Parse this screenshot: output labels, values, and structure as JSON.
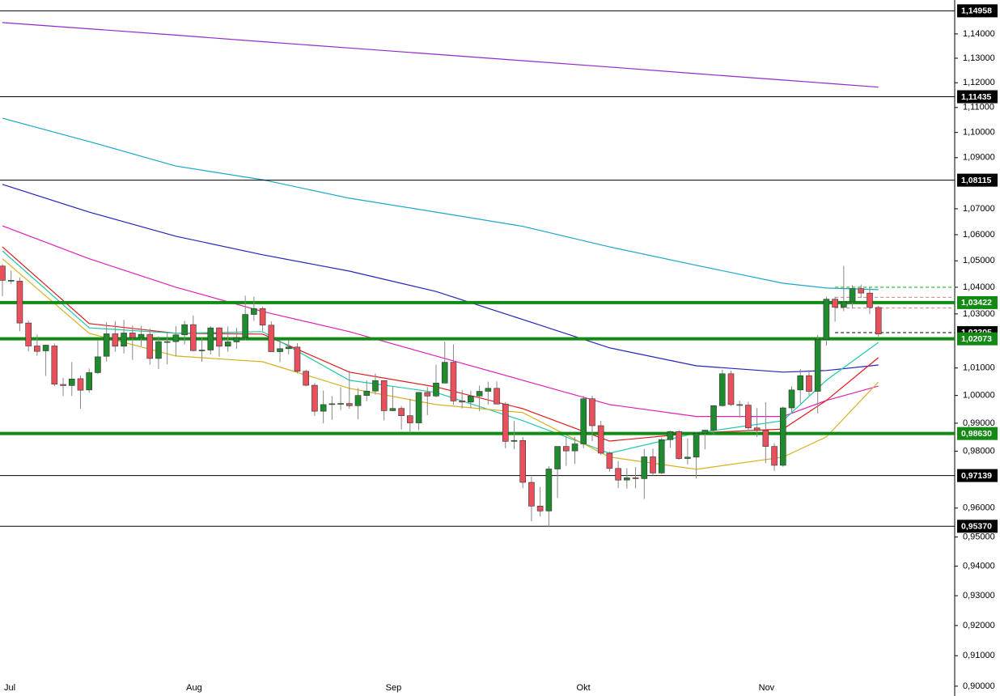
{
  "chart_data": {
    "type": "candlestick",
    "categories": [
      "Jul",
      null,
      null,
      null,
      null,
      null,
      null,
      null,
      null,
      null,
      null,
      null,
      null,
      null,
      null,
      null,
      null,
      null,
      null,
      null,
      null,
      "Aug",
      null,
      null,
      null,
      null,
      null,
      null,
      null,
      null,
      null,
      null,
      null,
      null,
      null,
      null,
      null,
      null,
      null,
      null,
      null,
      null,
      null,
      null,
      "Sep",
      null,
      null,
      null,
      null,
      null,
      null,
      null,
      null,
      null,
      null,
      null,
      null,
      null,
      null,
      null,
      null,
      null,
      null,
      null,
      null,
      null,
      "Okt",
      null,
      null,
      null,
      null,
      null,
      null,
      null,
      null,
      null,
      null,
      null,
      null,
      null,
      null,
      null,
      null,
      null,
      null,
      null,
      null,
      "Nov",
      null,
      null,
      null,
      null,
      null,
      null,
      null,
      null,
      null,
      null,
      null,
      null,
      null,
      null
    ],
    "open": [
      1.048,
      1.0424,
      1.0423,
      1.0266,
      1.0181,
      1.0163,
      1.0181,
      1.004,
      1.0036,
      1.0061,
      1.002,
      1.0083,
      1.0143,
      1.0226,
      1.018,
      1.0229,
      1.0212,
      1.0224,
      1.0135,
      1.0197,
      1.0197,
      1.0222,
      1.026,
      1.0164,
      1.0166,
      1.0248,
      1.018,
      1.0196,
      1.0212,
      1.0298,
      1.032,
      1.0258,
      1.016,
      1.0171,
      1.0177,
      1.0088,
      1.0037,
      0.9943,
      0.9967,
      0.997,
      0.9971,
      0.9963,
      1.0,
      1.0016,
      1.0054,
      0.9945,
      0.9953,
      0.9927,
      0.9901,
      1.0011,
      0.9998,
      1.0045,
      1.0121,
      0.998,
      0.9976,
      0.9998,
      1.0015,
      1.0026,
      0.9969,
      0.9835,
      0.9838,
      0.969,
      0.9607,
      0.959,
      0.9737,
      0.9817,
      0.9801,
      0.9826,
      0.9988,
      0.9891,
      0.9793,
      0.9739,
      0.9698,
      0.9706,
      0.9703,
      0.978,
      0.9723,
      0.9841,
      0.987,
      0.9774,
      0.9779,
      0.9864,
      0.9875,
      0.9963,
      1.0079,
      0.9967,
      0.9965,
      0.9883,
      0.9874,
      0.9817,
      0.975,
      0.9955,
      1.002,
      1.0072,
      1.0015,
      1.0205,
      1.0355,
      1.0325,
      1.0345,
      1.0395,
      1.0378,
      1.0324
    ],
    "high": [
      1.0487,
      1.0463,
      1.0437,
      1.0275,
      1.0223,
      1.0185,
      1.019,
      1.0064,
      1.0122,
      1.0073,
      1.0098,
      1.02,
      1.0269,
      1.0273,
      1.0278,
      1.0257,
      1.0255,
      1.0245,
      1.0217,
      1.0234,
      1.0254,
      1.0274,
      1.0294,
      1.0212,
      1.0254,
      1.025,
      1.0253,
      1.0248,
      1.0368,
      1.0364,
      1.0327,
      1.0272,
      1.0202,
      1.0202,
      1.0191,
      1.0094,
      1.0045,
      1.0018,
      0.9998,
      1.003,
      1.009,
      1.0027,
      1.0054,
      1.008,
      1.0056,
      1.0033,
      0.9962,
      0.9988,
      1.0012,
      1.003,
      1.0112,
      1.0197,
      1.0187,
      1.0019,
      1.0018,
      1.0036,
      1.005,
      1.0051,
      0.9976,
      0.9908,
      0.9851,
      0.971,
      0.9674,
      0.9747,
      0.9817,
      0.9853,
      0.985,
      0.9999,
      0.9999,
      0.9908,
      0.9799,
      0.9765,
      0.974,
      0.9744,
      0.9808,
      0.9809,
      0.9848,
      0.9873,
      0.9875,
      0.9846,
      0.9869,
      0.9876,
      0.9965,
      1.0094,
      1.009,
      0.9981,
      0.9977,
      0.9954,
      0.9976,
      0.9829,
      0.996,
      1.0033,
      1.0096,
      1.0093,
      1.0222,
      1.0364,
      1.0364,
      1.0481,
      1.0408,
      1.041,
      1.04,
      1.033
    ],
    "low": [
      1.0366,
      1.0413,
      1.0236,
      1.0161,
      1.0145,
      1.0071,
      1.0034,
      0.9998,
      0.9998,
      0.9952,
      1.001,
      1.0078,
      1.0124,
      1.016,
      1.0153,
      1.013,
      1.018,
      1.0112,
      1.0096,
      1.0113,
      1.0144,
      1.0186,
      1.0161,
      1.0123,
      1.015,
      1.0141,
      1.016,
      1.017,
      1.0202,
      1.0274,
      1.0237,
      1.016,
      1.0122,
      1.015,
      1.008,
      1.0033,
      0.9926,
      0.99,
      0.9912,
      0.9947,
      0.9952,
      0.9914,
      0.9979,
      1.0003,
      0.991,
      0.9943,
      0.9877,
      0.9864,
      0.9875,
      0.9929,
      0.9993,
      1.0045,
      0.9966,
      0.9953,
      0.9955,
      0.9943,
      0.9967,
      0.9968,
      0.981,
      0.9807,
      0.9669,
      0.9554,
      0.9571,
      0.9535,
      0.9635,
      0.9748,
      0.9754,
      0.9811,
      0.9836,
      0.9786,
      0.9728,
      0.967,
      0.9668,
      0.9669,
      0.9632,
      0.9714,
      0.9719,
      0.9812,
      0.977,
      0.9753,
      0.9704,
      0.9807,
      0.986,
      0.996,
      0.9962,
      0.992,
      0.9871,
      0.985,
      0.9758,
      0.973,
      0.9745,
      0.9938,
      0.9971,
      1.0,
      0.9935,
      1.0182,
      1.0271,
      1.031,
      1.032,
      1.036,
      1.03,
      1.0215
    ],
    "close": [
      1.0426,
      1.0426,
      1.0266,
      1.0181,
      1.0161,
      1.0184,
      1.0041,
      1.0036,
      1.006,
      1.0019,
      1.0083,
      1.0141,
      1.0226,
      1.018,
      1.0229,
      1.0212,
      1.0224,
      1.0135,
      1.0197,
      1.0197,
      1.0222,
      1.026,
      1.0164,
      1.0166,
      1.0248,
      1.018,
      1.0196,
      1.0212,
      1.0298,
      1.032,
      1.0258,
      1.016,
      1.0171,
      1.0177,
      1.0088,
      1.0037,
      0.9943,
      0.9967,
      0.997,
      0.9971,
      0.9963,
      1.0,
      1.0016,
      1.0054,
      0.9945,
      0.9953,
      0.9927,
      0.9901,
      1.0011,
      0.9998,
      1.0045,
      1.0121,
      0.998,
      0.9976,
      0.9998,
      1.0015,
      1.0026,
      0.9969,
      0.9835,
      0.9838,
      0.969,
      0.9607,
      0.959,
      0.9737,
      0.9817,
      0.9801,
      0.9826,
      0.9988,
      0.9891,
      0.9793,
      0.9739,
      0.9698,
      0.9706,
      0.9703,
      0.978,
      0.9723,
      0.9841,
      0.987,
      0.9774,
      0.9779,
      0.9864,
      0.9875,
      0.9963,
      1.0079,
      0.9967,
      0.9965,
      0.9883,
      0.9874,
      0.9817,
      0.975,
      0.9955,
      1.002,
      1.0072,
      1.0015,
      1.0205,
      1.0355,
      1.0325,
      1.0345,
      1.0395,
      1.0378,
      1.0324,
      1.0225
    ],
    "up_color": "#1f8a2e",
    "down_color": "#e8505b",
    "log": true,
    "ylim": [
      0.8968,
      1.1541
    ],
    "yticks": [
      {
        "value": 1.14,
        "label": "1,14000"
      },
      {
        "value": 1.13,
        "label": "1,13000"
      },
      {
        "value": 1.12,
        "label": "1,12000"
      },
      {
        "value": 1.11,
        "label": "1,11000"
      },
      {
        "value": 1.1,
        "label": "1,10000"
      },
      {
        "value": 1.09,
        "label": "1,09000"
      },
      {
        "value": 1.07,
        "label": "1,07000"
      },
      {
        "value": 1.06,
        "label": "1,06000"
      },
      {
        "value": 1.05,
        "label": "1,05000"
      },
      {
        "value": 1.04,
        "label": "1,04000"
      },
      {
        "value": 1.03,
        "label": "1,03000"
      },
      {
        "value": 1.01,
        "label": "1,01000"
      },
      {
        "value": 1.0,
        "label": "1,00000"
      },
      {
        "value": 0.99,
        "label": "0,99000"
      },
      {
        "value": 0.98,
        "label": "0,98000"
      },
      {
        "value": 0.96,
        "label": "0,96000"
      },
      {
        "value": 0.95,
        "label": "0,95000"
      },
      {
        "value": 0.94,
        "label": "0,94000"
      },
      {
        "value": 0.93,
        "label": "0,93000"
      },
      {
        "value": 0.92,
        "label": "0,92000"
      },
      {
        "value": 0.91,
        "label": "0,91000"
      },
      {
        "value": 0.9,
        "label": "0,90000"
      }
    ],
    "lines": [
      {
        "color": "#8e2bd0",
        "x": [
          0,
          10,
          20,
          30,
          40,
          50,
          60,
          70,
          80,
          90,
          95,
          101
        ],
        "values": [
          1.1447,
          1.1421,
          1.1395,
          1.1368,
          1.1342,
          1.1316,
          1.129,
          1.1264,
          1.1237,
          1.1211,
          1.1198,
          1.1182
        ]
      },
      {
        "color": "#1aa7c9",
        "x": [
          0,
          10,
          20,
          30,
          40,
          50,
          60,
          70,
          80,
          90,
          95,
          101
        ],
        "values": [
          1.1057,
          1.0964,
          1.0867,
          1.0813,
          1.0741,
          1.0687,
          1.0632,
          1.0553,
          1.0483,
          1.0415,
          1.0397,
          1.0391
        ]
      },
      {
        "color": "#2424b8",
        "x": [
          0,
          10,
          20,
          30,
          40,
          50,
          60,
          70,
          80,
          90,
          95,
          101
        ],
        "values": [
          1.0795,
          1.0687,
          1.0594,
          1.0523,
          1.0461,
          1.0384,
          1.0279,
          1.0174,
          1.0108,
          1.0085,
          1.0091,
          1.0111
        ]
      },
      {
        "color": "#e020b8",
        "x": [
          0,
          10,
          20,
          30,
          40,
          50,
          60,
          70,
          80,
          90,
          95,
          101
        ],
        "values": [
          1.0634,
          1.0508,
          1.04,
          1.0309,
          1.0234,
          1.0144,
          1.0055,
          0.9967,
          0.9924,
          0.9924,
          0.9982,
          1.0034
        ]
      },
      {
        "color": "#e01818",
        "x": [
          0,
          10,
          20,
          30,
          40,
          50,
          60,
          70,
          80,
          90,
          95,
          101
        ],
        "values": [
          1.0553,
          1.0264,
          1.0228,
          1.0225,
          1.0085,
          1.0031,
          0.9952,
          0.9836,
          0.9865,
          0.9879,
          0.9982,
          1.0138
        ]
      },
      {
        "color": "#20c8a8",
        "x": [
          0,
          10,
          20,
          30,
          40,
          50,
          60,
          70,
          80,
          90,
          95,
          101
        ],
        "values": [
          1.0538,
          1.0248,
          1.0228,
          1.0234,
          1.0055,
          1.0011,
          0.9909,
          0.9793,
          0.9865,
          0.9909,
          1.0055,
          1.0194
        ]
      },
      {
        "color": "#d8b020",
        "x": [
          0,
          10,
          20,
          30,
          40,
          50,
          60,
          70,
          80,
          90,
          95,
          101
        ],
        "values": [
          1.0508,
          1.0228,
          1.0144,
          1.0123,
          1.0026,
          0.9967,
          0.9938,
          0.9779,
          0.9736,
          0.9779,
          0.9851,
          1.0049
        ]
      }
    ],
    "levels": [
      {
        "value": 1.14958,
        "label": "1,14958",
        "color": "#000000",
        "width": 1
      },
      {
        "value": 1.11435,
        "label": "1,11435",
        "color": "#000000",
        "width": 1
      },
      {
        "value": 1.08115,
        "label": "1,08115",
        "color": "#000000",
        "width": 1
      },
      {
        "value": 1.04,
        "color": "#7fd07f",
        "width": 2,
        "dash": true
      },
      {
        "value": 1.0362,
        "color": "#d08080",
        "width": 1,
        "dash": true
      },
      {
        "value": 1.0322,
        "color": "#d08080",
        "width": 1,
        "dash": true
      },
      {
        "value": 1.02305,
        "label": "1,02305",
        "color": "#000000",
        "width": 1,
        "dash": true
      },
      {
        "value": 1.03422,
        "label": "1,03422",
        "color": "#138a13",
        "width": 4
      },
      {
        "value": 1.02073,
        "label": "1,02073",
        "color": "#138a13",
        "width": 4
      },
      {
        "value": 0.9863,
        "label": "0,98630",
        "color": "#138a13",
        "width": 4
      },
      {
        "value": 0.97139,
        "label": "0,97139",
        "color": "#000000",
        "width": 1
      },
      {
        "value": 0.9537,
        "label": "0,95370",
        "color": "#000000",
        "width": 1
      }
    ]
  }
}
